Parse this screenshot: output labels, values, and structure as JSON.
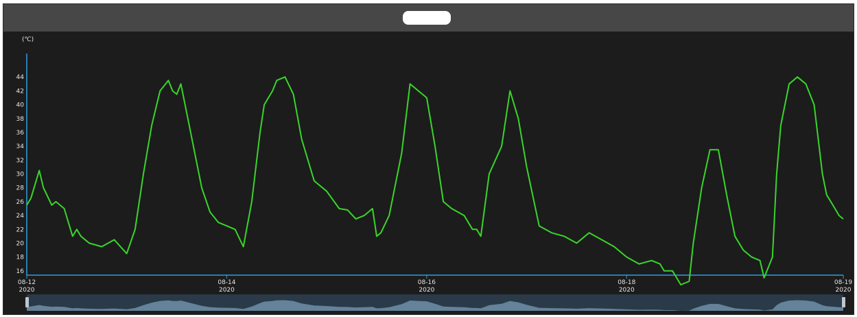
{
  "title": "",
  "chart_data": {
    "type": "line",
    "title": "",
    "unit_label": "(℃)",
    "xlabel": "",
    "ylabel": "",
    "ylim": [
      14,
      46
    ],
    "yticks": [
      16,
      18,
      20,
      22,
      24,
      26,
      28,
      30,
      32,
      34,
      36,
      38,
      40,
      42,
      44
    ],
    "xticks": [
      {
        "date": "2020-08-12",
        "label": "08-12",
        "sub": "2020"
      },
      {
        "date": "2020-08-14",
        "label": "08-14",
        "sub": "2020"
      },
      {
        "date": "2020-08-16",
        "label": "08-16",
        "sub": "2020"
      },
      {
        "date": "2020-08-18",
        "label": "08-18",
        "sub": "2020"
      },
      {
        "date": "2020-08-19",
        "label": "08-19",
        "sub": "2020"
      }
    ],
    "line_color": "#39d62a",
    "grid": false,
    "series": [
      {
        "x": [
          "2020-08-12 00:00",
          "2020-08-12 01:00",
          "2020-08-12 03:00",
          "2020-08-12 04:00",
          "2020-08-12 06:00",
          "2020-08-12 07:00",
          "2020-08-12 09:00",
          "2020-08-12 11:00",
          "2020-08-12 12:00",
          "2020-08-12 13:00",
          "2020-08-12 15:00",
          "2020-08-12 18:00",
          "2020-08-12 21:00",
          "2020-08-13 00:00",
          "2020-08-13 02:00",
          "2020-08-13 04:00",
          "2020-08-13 06:00",
          "2020-08-13 08:00",
          "2020-08-13 10:00",
          "2020-08-13 11:00",
          "2020-08-13 12:00",
          "2020-08-13 13:00",
          "2020-08-13 15:00",
          "2020-08-13 18:00",
          "2020-08-13 20:00",
          "2020-08-13 22:00",
          "2020-08-14 00:00",
          "2020-08-14 02:00",
          "2020-08-14 04:00",
          "2020-08-14 06:00",
          "2020-08-14 08:00",
          "2020-08-14 09:00",
          "2020-08-14 11:00",
          "2020-08-14 12:00",
          "2020-08-14 14:00",
          "2020-08-14 16:00",
          "2020-08-14 18:00",
          "2020-08-14 21:00",
          "2020-08-15 00:00",
          "2020-08-15 03:00",
          "2020-08-15 05:00",
          "2020-08-15 07:00",
          "2020-08-15 09:00",
          "2020-08-15 11:00",
          "2020-08-15 12:00",
          "2020-08-15 13:00",
          "2020-08-15 15:00",
          "2020-08-15 18:00",
          "2020-08-15 20:00",
          "2020-08-15 22:00",
          "2020-08-16 00:00",
          "2020-08-16 02:00",
          "2020-08-16 04:00",
          "2020-08-16 06:00",
          "2020-08-16 09:00",
          "2020-08-16 11:00",
          "2020-08-16 12:00",
          "2020-08-16 13:00",
          "2020-08-16 15:00",
          "2020-08-16 18:00",
          "2020-08-16 20:00",
          "2020-08-16 22:00",
          "2020-08-17 00:00",
          "2020-08-17 03:00",
          "2020-08-17 06:00",
          "2020-08-17 09:00",
          "2020-08-17 12:00",
          "2020-08-17 15:00",
          "2020-08-17 18:00",
          "2020-08-17 21:00",
          "2020-08-18 00:00",
          "2020-08-18 03:00",
          "2020-08-18 06:00",
          "2020-08-18 08:00",
          "2020-08-18 09:00",
          "2020-08-18 11:00",
          "2020-08-18 13:00",
          "2020-08-18 15:00",
          "2020-08-18 16:00",
          "2020-08-18 18:00",
          "2020-08-18 20:00",
          "2020-08-18 22:00",
          "2020-08-19 00:00",
          "2020-08-19 02:00",
          "2020-08-19 04:00",
          "2020-08-19 06:00",
          "2020-08-19 08:00",
          "2020-08-19 09:00",
          "2020-08-19 11:00",
          "2020-08-19 12:00",
          "2020-08-19 13:00",
          "2020-08-19 15:00",
          "2020-08-19 17:00",
          "2020-08-19 19:00",
          "2020-08-19 21:00",
          "2020-08-19 23:00",
          "2020-08-20 00:00",
          "2020-08-20 02:00",
          "2020-08-20 03:00",
          "2020-08-20 04:00"
        ],
        "values": [
          25.5,
          26.5,
          30.5,
          28,
          25.5,
          26,
          25,
          21,
          22,
          21,
          20,
          19.5,
          20.5,
          18.5,
          22,
          30,
          37,
          42,
          43.5,
          42,
          41.5,
          43,
          37,
          28,
          24.5,
          23,
          22.5,
          22,
          19.5,
          26,
          36,
          40,
          42,
          43.5,
          44,
          41.5,
          35,
          29,
          27.5,
          25,
          24.8,
          23.5,
          24,
          25,
          21,
          21.5,
          24,
          33,
          43,
          42,
          41,
          34,
          26,
          25,
          24,
          22,
          22,
          21,
          30,
          34,
          42,
          38,
          31,
          22.5,
          21.5,
          21,
          20,
          21.5,
          20.5,
          19.5,
          18,
          17,
          17.5,
          17,
          16,
          16,
          14,
          14.5,
          20,
          28,
          33.5,
          33.5,
          27,
          21,
          19,
          18,
          17.5,
          15,
          18,
          30,
          37,
          43,
          44,
          43,
          40,
          30,
          27,
          25,
          24,
          23.5
        ]
      }
    ]
  },
  "navigator": {
    "series_color": "#6f8fa8"
  }
}
